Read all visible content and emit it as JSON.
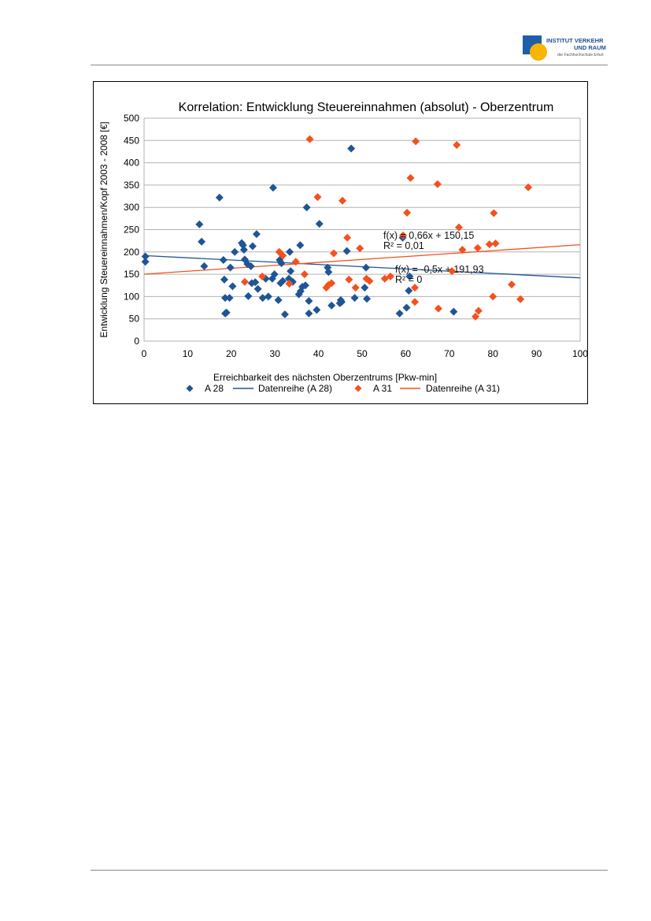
{
  "header": {
    "logo": {
      "line1": "INSTITUT VERKEHR",
      "line2": "UND RAUM",
      "line3": "der Fachhochschule Erfurt"
    }
  },
  "chart_data": {
    "type": "scatter",
    "title": "Korrelation: Entwicklung Steuereinnahmen (absolut) - Oberzentrum",
    "xlabel": "Erreichbarkeit des nächsten Oberzentrums [Pkw-min]",
    "ylabel": "Entwicklung Steuereinnahmen/Kopf 2003 - 2008 [€]",
    "xlim": [
      0,
      100
    ],
    "ylim": [
      0,
      500
    ],
    "xticks": [
      0,
      10,
      20,
      30,
      40,
      50,
      60,
      70,
      80,
      90,
      100
    ],
    "yticks": [
      0,
      50,
      100,
      150,
      200,
      250,
      300,
      350,
      400,
      450,
      500
    ],
    "grid": "horizontal",
    "legend_position": "bottom",
    "series": [
      {
        "name": "A 28",
        "color": "#1f5596",
        "marker": "diamond",
        "points": [
          [
            0.3,
            190
          ],
          [
            0.3,
            178
          ],
          [
            12.7,
            262
          ],
          [
            13.2,
            223
          ],
          [
            13.8,
            168
          ],
          [
            17.3,
            322
          ],
          [
            18.2,
            182
          ],
          [
            18.4,
            138
          ],
          [
            18.6,
            97
          ],
          [
            18.6,
            62
          ],
          [
            18.9,
            64
          ],
          [
            19.6,
            97
          ],
          [
            19.8,
            165
          ],
          [
            20.3,
            123
          ],
          [
            20.8,
            200
          ],
          [
            22.4,
            220
          ],
          [
            22.7,
            215
          ],
          [
            22.9,
            205
          ],
          [
            23.1,
            183
          ],
          [
            23.7,
            173
          ],
          [
            23.9,
            101
          ],
          [
            24.5,
            168
          ],
          [
            24.7,
            130
          ],
          [
            24.9,
            213
          ],
          [
            25.5,
            132
          ],
          [
            25.8,
            240
          ],
          [
            26.1,
            117
          ],
          [
            27.2,
            97
          ],
          [
            27.9,
            140
          ],
          [
            28.5,
            100
          ],
          [
            29.4,
            140
          ],
          [
            29.6,
            344
          ],
          [
            29.9,
            150
          ],
          [
            30.8,
            92
          ],
          [
            31.1,
            182
          ],
          [
            31.3,
            130
          ],
          [
            31.5,
            175
          ],
          [
            31.8,
            135
          ],
          [
            32.3,
            60
          ],
          [
            33.2,
            140
          ],
          [
            33.4,
            200
          ],
          [
            33.6,
            157
          ],
          [
            34.1,
            133
          ],
          [
            35.5,
            105
          ],
          [
            35.8,
            215
          ],
          [
            35.9,
            112
          ],
          [
            36.3,
            122
          ],
          [
            37.0,
            125
          ],
          [
            37.3,
            300
          ],
          [
            37.8,
            90
          ],
          [
            37.8,
            62
          ],
          [
            39.6,
            70
          ],
          [
            40.2,
            263
          ],
          [
            42.1,
            165
          ],
          [
            42.3,
            155
          ],
          [
            43.0,
            80
          ],
          [
            44.9,
            85
          ],
          [
            45.1,
            92
          ],
          [
            45.3,
            88
          ],
          [
            46.5,
            202
          ],
          [
            47.5,
            432
          ],
          [
            48.3,
            97
          ],
          [
            50.6,
            120
          ],
          [
            50.9,
            165
          ],
          [
            51.1,
            95
          ],
          [
            58.6,
            62
          ],
          [
            59.3,
            232
          ],
          [
            60.2,
            75
          ],
          [
            60.7,
            113
          ],
          [
            60.9,
            145
          ],
          [
            71.0,
            66
          ]
        ]
      },
      {
        "name": "A 31",
        "color": "#f4511e",
        "marker": "diamond",
        "points": [
          [
            23.1,
            133
          ],
          [
            27.1,
            145
          ],
          [
            31.0,
            200
          ],
          [
            31.8,
            192
          ],
          [
            33.3,
            129
          ],
          [
            34.8,
            178
          ],
          [
            36.8,
            150
          ],
          [
            38.0,
            453
          ],
          [
            39.8,
            323
          ],
          [
            41.8,
            120
          ],
          [
            42.3,
            126
          ],
          [
            43.0,
            130
          ],
          [
            43.5,
            197
          ],
          [
            45.5,
            315
          ],
          [
            46.6,
            232
          ],
          [
            47.0,
            138
          ],
          [
            48.5,
            120
          ],
          [
            49.5,
            208
          ],
          [
            51.0,
            140
          ],
          [
            51.7,
            135
          ],
          [
            55.2,
            140
          ],
          [
            56.5,
            145
          ],
          [
            59.4,
            237
          ],
          [
            60.3,
            288
          ],
          [
            61.1,
            366
          ],
          [
            62.1,
            120
          ],
          [
            62.3,
            448
          ],
          [
            62.1,
            88
          ],
          [
            67.3,
            352
          ],
          [
            67.5,
            73
          ],
          [
            71.7,
            440
          ],
          [
            72.2,
            255
          ],
          [
            73.0,
            205
          ],
          [
            70.6,
            157
          ],
          [
            76.0,
            55
          ],
          [
            76.5,
            209
          ],
          [
            76.7,
            68
          ],
          [
            79.2,
            217
          ],
          [
            80.0,
            100
          ],
          [
            80.2,
            287
          ],
          [
            80.6,
            219
          ],
          [
            84.3,
            127
          ],
          [
            86.3,
            94
          ],
          [
            88.1,
            345
          ]
        ]
      }
    ],
    "trendlines": [
      {
        "series": "A 28",
        "name": "Datenreihe (A 28)",
        "equation": "f(x) = -0,5x + 191,93",
        "r2": "R² = 0",
        "slope": -0.5,
        "intercept": 191.93,
        "color": "#1f5596"
      },
      {
        "series": "A 31",
        "name": "Datenreihe (A 31)",
        "equation": "f(x) = 0,66x + 150,15",
        "r2": "R² = 0,01",
        "slope": 0.66,
        "intercept": 150.15,
        "color": "#f4511e"
      }
    ],
    "legend": [
      "A 28",
      "Datenreihe (A 28)",
      "A 31",
      "Datenreihe (A 31)"
    ]
  }
}
